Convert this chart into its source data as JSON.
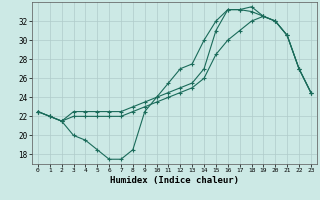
{
  "xlabel": "Humidex (Indice chaleur)",
  "bg_color": "#cce9e5",
  "grid_color": "#b0ccca",
  "line_color": "#1a6b5a",
  "xlim": [
    -0.5,
    23.5
  ],
  "ylim": [
    17.0,
    34.0
  ],
  "yticks": [
    18,
    20,
    22,
    24,
    26,
    28,
    30,
    32
  ],
  "xticks": [
    0,
    1,
    2,
    3,
    4,
    5,
    6,
    7,
    8,
    9,
    10,
    11,
    12,
    13,
    14,
    15,
    16,
    17,
    18,
    19,
    20,
    21,
    22,
    23
  ],
  "line1_y": [
    22.5,
    22.0,
    21.5,
    20.0,
    19.5,
    18.5,
    17.5,
    17.5,
    18.5,
    22.5,
    24.0,
    25.5,
    27.0,
    27.5,
    30.0,
    32.0,
    33.2,
    33.2,
    33.0,
    32.5,
    32.0,
    30.5,
    27.0,
    24.5
  ],
  "line2_y": [
    22.5,
    22.0,
    21.5,
    22.5,
    22.5,
    22.5,
    22.5,
    22.5,
    23.0,
    23.5,
    24.0,
    24.5,
    25.0,
    25.5,
    27.0,
    31.0,
    33.2,
    33.2,
    33.5,
    32.5,
    32.0,
    30.5,
    27.0,
    24.5
  ],
  "line3_y": [
    22.5,
    22.0,
    21.5,
    22.0,
    22.0,
    22.0,
    22.0,
    22.0,
    22.5,
    23.0,
    23.5,
    24.0,
    24.5,
    25.0,
    26.0,
    28.5,
    30.0,
    31.0,
    32.0,
    32.5,
    32.0,
    30.5,
    27.0,
    24.5
  ]
}
